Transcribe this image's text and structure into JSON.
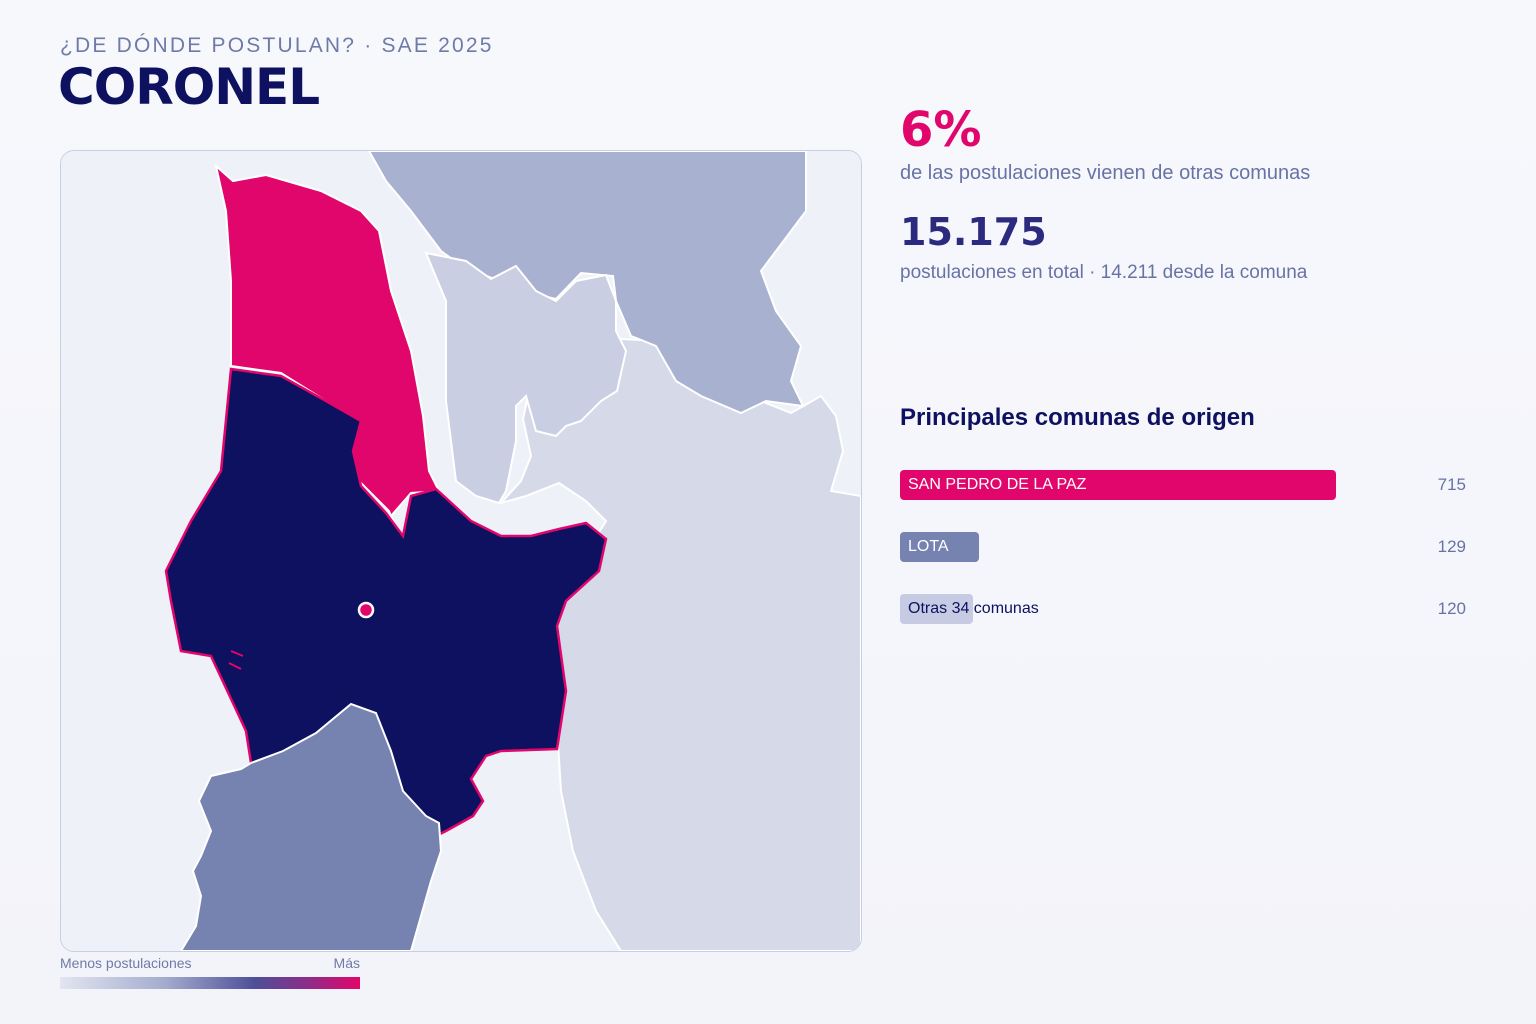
{
  "header": {
    "eyebrow": "¿DE DÓNDE POSTULAN? · SAE 2025",
    "title": "CORONEL"
  },
  "stats": {
    "pct_value": "6%",
    "pct_label": "de las postulaciones vienen de otras comunas",
    "total_value": "15.175",
    "total_label": "postulaciones en total · 14.211 desde la comuna"
  },
  "ranking": {
    "title": "Principales comunas de origen",
    "max_value": 715,
    "items": [
      {
        "label": "SAN PEDRO DE LA PAZ",
        "value": 715,
        "display": "715",
        "bar_color": "#e1066b",
        "text_color": "#ffffff"
      },
      {
        "label": "LOTA",
        "value": 129,
        "display": "129",
        "bar_color": "#7682b0",
        "text_color": "#ffffff"
      },
      {
        "label": "Otras 34 comunas",
        "value": 120,
        "display": "120",
        "bar_color": "#c6cbe3",
        "text_color": "#0d1160"
      }
    ]
  },
  "legend": {
    "low_label": "Menos postulaciones",
    "high_label": "Más"
  },
  "map": {
    "colors": {
      "background": "#eef1f8",
      "selected": "#0d1160",
      "selected_border": "#e1066b",
      "highest": "#e1066b",
      "medium": "#7682b0",
      "low": "#a9b1d0",
      "lower": "#c9cee2",
      "lowest": "#d5d9e8",
      "marker": "#e1066b"
    }
  }
}
